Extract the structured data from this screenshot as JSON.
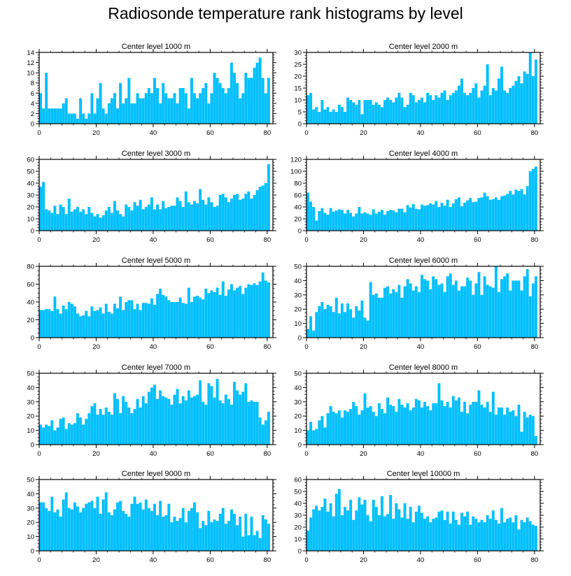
{
  "title": "Radiosonde temperature rank histograms by level",
  "bar_color": "#00bfff",
  "chart_data": [
    {
      "type": "bar",
      "title": "Center level 1000 m",
      "xlim": [
        0,
        82
      ],
      "ylim": [
        0,
        14
      ],
      "yticks": [
        0,
        2,
        4,
        6,
        8,
        10,
        12,
        14
      ],
      "xticks": [
        0,
        20,
        40,
        60,
        80
      ],
      "values": [
        6,
        3,
        10,
        3,
        3,
        3,
        3,
        3,
        4,
        5,
        2,
        2,
        2,
        1,
        5,
        2,
        1,
        2,
        6,
        2,
        5,
        8,
        3,
        2,
        4,
        5,
        6,
        3,
        8,
        4,
        5,
        9,
        4,
        4,
        6,
        5,
        5,
        6,
        7,
        6,
        9,
        7,
        4,
        8,
        6,
        5,
        5,
        6,
        4,
        7,
        7,
        6,
        3,
        9,
        6,
        5,
        6,
        7,
        8,
        4,
        6,
        10,
        9,
        8,
        7,
        6,
        7,
        12,
        10,
        8,
        5,
        6,
        10,
        9,
        9,
        11,
        12,
        13,
        9,
        6,
        9
      ]
    },
    {
      "type": "bar",
      "title": "Center level 2000 m",
      "xlim": [
        0,
        82
      ],
      "ylim": [
        0,
        30
      ],
      "yticks": [
        0,
        5,
        10,
        15,
        20,
        25,
        30
      ],
      "xticks": [
        0,
        20,
        40,
        60,
        80
      ],
      "values": [
        12,
        13,
        6,
        7,
        5,
        10,
        6,
        7,
        5,
        6,
        5,
        8,
        7,
        5,
        11,
        10,
        9,
        8,
        10,
        4,
        10,
        10,
        10,
        8,
        9,
        8,
        7,
        10,
        11,
        10,
        9,
        11,
        13,
        11,
        7,
        8,
        13,
        12,
        9,
        10,
        11,
        9,
        13,
        12,
        10,
        12,
        11,
        13,
        14,
        10,
        12,
        13,
        14,
        16,
        19,
        13,
        12,
        13,
        15,
        17,
        11,
        14,
        16,
        25,
        12,
        15,
        14,
        19,
        24,
        14,
        13,
        15,
        16,
        18,
        20,
        17,
        22,
        21,
        30,
        20,
        27
      ]
    },
    {
      "type": "bar",
      "title": "Center level 3000 m",
      "xlim": [
        0,
        82
      ],
      "ylim": [
        0,
        60
      ],
      "yticks": [
        0,
        10,
        20,
        30,
        40,
        50,
        60
      ],
      "xticks": [
        0,
        20,
        40,
        60,
        80
      ],
      "values": [
        37,
        41,
        18,
        17,
        15,
        21,
        14,
        22,
        20,
        14,
        27,
        16,
        18,
        20,
        16,
        18,
        14,
        20,
        15,
        12,
        14,
        11,
        13,
        17,
        20,
        15,
        25,
        17,
        14,
        12,
        22,
        20,
        17,
        24,
        21,
        26,
        18,
        20,
        22,
        28,
        18,
        22,
        18,
        25,
        19,
        20,
        21,
        21,
        28,
        25,
        20,
        33,
        24,
        22,
        25,
        23,
        35,
        26,
        22,
        28,
        24,
        20,
        21,
        30,
        31,
        28,
        24,
        27,
        30,
        31,
        26,
        27,
        31,
        33,
        27,
        30,
        34,
        37,
        38,
        40,
        56
      ]
    },
    {
      "type": "bar",
      "title": "Center level 4000 m",
      "xlim": [
        0,
        82
      ],
      "ylim": [
        0,
        120
      ],
      "yticks": [
        0,
        20,
        40,
        60,
        80,
        100,
        120
      ],
      "xticks": [
        0,
        20,
        40,
        60,
        80
      ],
      "values": [
        64,
        49,
        40,
        17,
        33,
        38,
        30,
        27,
        38,
        32,
        34,
        36,
        35,
        29,
        35,
        30,
        24,
        29,
        40,
        29,
        31,
        29,
        27,
        36,
        29,
        32,
        35,
        27,
        33,
        35,
        34,
        31,
        37,
        37,
        31,
        43,
        39,
        45,
        37,
        36,
        44,
        42,
        43,
        46,
        44,
        50,
        40,
        47,
        42,
        52,
        40,
        46,
        53,
        56,
        41,
        47,
        51,
        55,
        48,
        49,
        55,
        56,
        64,
        58,
        52,
        53,
        56,
        52,
        58,
        59,
        62,
        67,
        61,
        69,
        67,
        70,
        61,
        75,
        100,
        104,
        108
      ]
    },
    {
      "type": "bar",
      "title": "Center level 5000 m",
      "xlim": [
        0,
        82
      ],
      "ylim": [
        0,
        80
      ],
      "yticks": [
        0,
        20,
        40,
        60,
        80
      ],
      "xticks": [
        0,
        20,
        40,
        60,
        80
      ],
      "values": [
        31,
        31,
        32,
        32,
        30,
        46,
        32,
        27,
        36,
        32,
        40,
        38,
        35,
        27,
        24,
        25,
        30,
        24,
        35,
        30,
        31,
        34,
        27,
        38,
        29,
        27,
        38,
        33,
        46,
        31,
        40,
        42,
        42,
        32,
        38,
        31,
        39,
        39,
        38,
        44,
        37,
        49,
        55,
        48,
        46,
        42,
        40,
        40,
        40,
        45,
        39,
        38,
        56,
        40,
        46,
        47,
        45,
        43,
        55,
        50,
        53,
        51,
        56,
        48,
        63,
        47,
        54,
        60,
        53,
        56,
        58,
        49,
        56,
        60,
        59,
        61,
        59,
        63,
        73,
        64,
        62
      ]
    },
    {
      "type": "bar",
      "title": "Center level 6000 m",
      "xlim": [
        0,
        82
      ],
      "ylim": [
        0,
        50
      ],
      "yticks": [
        0,
        10,
        20,
        30,
        40,
        50
      ],
      "xticks": [
        0,
        20,
        40,
        60,
        80
      ],
      "values": [
        6,
        15,
        5,
        18,
        22,
        25,
        20,
        23,
        22,
        18,
        28,
        17,
        24,
        18,
        24,
        20,
        14,
        22,
        19,
        26,
        14,
        12,
        39,
        30,
        31,
        28,
        28,
        35,
        36,
        31,
        34,
        32,
        37,
        28,
        36,
        41,
        38,
        33,
        36,
        32,
        44,
        41,
        40,
        34,
        43,
        41,
        37,
        38,
        32,
        43,
        45,
        37,
        40,
        33,
        36,
        36,
        42,
        40,
        30,
        38,
        46,
        30,
        43,
        37,
        36,
        35,
        50,
        32,
        41,
        43,
        45,
        33,
        40,
        40,
        40,
        33,
        43,
        48,
        29,
        38,
        43
      ]
    },
    {
      "type": "bar",
      "title": "Center level 7000 m",
      "xlim": [
        0,
        82
      ],
      "ylim": [
        0,
        50
      ],
      "yticks": [
        0,
        10,
        20,
        30,
        40,
        50
      ],
      "xticks": [
        0,
        20,
        40,
        60,
        80
      ],
      "values": [
        14,
        12,
        14,
        13,
        17,
        10,
        12,
        18,
        19,
        11,
        15,
        14,
        15,
        22,
        19,
        14,
        18,
        22,
        27,
        29,
        21,
        25,
        21,
        26,
        23,
        21,
        36,
        32,
        22,
        34,
        30,
        26,
        22,
        25,
        32,
        26,
        34,
        29,
        37,
        40,
        42,
        32,
        38,
        34,
        33,
        32,
        28,
        35,
        39,
        29,
        34,
        31,
        38,
        33,
        34,
        35,
        45,
        30,
        28,
        43,
        41,
        33,
        46,
        31,
        29,
        35,
        32,
        28,
        44,
        38,
        35,
        37,
        43,
        30,
        31,
        30,
        30,
        19,
        14,
        17,
        23
      ]
    },
    {
      "type": "bar",
      "title": "Center level 8000 m",
      "xlim": [
        0,
        82
      ],
      "ylim": [
        0,
        50
      ],
      "yticks": [
        0,
        10,
        20,
        30,
        40,
        50
      ],
      "xticks": [
        0,
        20,
        40,
        60,
        80
      ],
      "values": [
        10,
        16,
        10,
        11,
        17,
        20,
        12,
        22,
        27,
        23,
        22,
        24,
        19,
        24,
        23,
        25,
        30,
        27,
        21,
        24,
        36,
        26,
        27,
        23,
        20,
        29,
        25,
        22,
        33,
        28,
        27,
        23,
        32,
        28,
        26,
        29,
        24,
        26,
        32,
        31,
        26,
        30,
        27,
        24,
        29,
        29,
        43,
        31,
        27,
        30,
        26,
        34,
        31,
        33,
        23,
        30,
        22,
        28,
        30,
        30,
        38,
        28,
        26,
        30,
        23,
        37,
        21,
        26,
        26,
        21,
        26,
        23,
        24,
        20,
        28,
        9,
        23,
        19,
        21,
        20,
        6
      ]
    },
    {
      "type": "bar",
      "title": "Center level 9000 m",
      "xlim": [
        0,
        82
      ],
      "ylim": [
        0,
        50
      ],
      "yticks": [
        0,
        10,
        20,
        30,
        40,
        50
      ],
      "xticks": [
        0,
        20,
        40,
        60,
        80
      ],
      "values": [
        34,
        34,
        30,
        28,
        38,
        27,
        29,
        24,
        36,
        41,
        30,
        29,
        34,
        31,
        27,
        30,
        33,
        34,
        35,
        30,
        38,
        26,
        36,
        41,
        27,
        25,
        29,
        34,
        35,
        28,
        26,
        24,
        33,
        38,
        33,
        34,
        29,
        36,
        30,
        28,
        33,
        25,
        35,
        24,
        25,
        33,
        20,
        24,
        21,
        23,
        30,
        20,
        28,
        30,
        34,
        27,
        16,
        21,
        18,
        28,
        20,
        22,
        21,
        26,
        30,
        19,
        21,
        29,
        26,
        18,
        24,
        10,
        26,
        11,
        24,
        11,
        14,
        9,
        25,
        22,
        19
      ]
    },
    {
      "type": "bar",
      "title": "Center level 10000 m",
      "xlim": [
        0,
        82
      ],
      "ylim": [
        0,
        60
      ],
      "yticks": [
        0,
        10,
        20,
        30,
        40,
        50,
        60
      ],
      "xticks": [
        0,
        20,
        40,
        60,
        80
      ],
      "values": [
        17,
        28,
        35,
        38,
        34,
        37,
        44,
        33,
        40,
        29,
        48,
        52,
        30,
        37,
        34,
        43,
        26,
        34,
        45,
        39,
        43,
        30,
        25,
        43,
        37,
        30,
        46,
        29,
        31,
        47,
        27,
        40,
        35,
        28,
        40,
        27,
        37,
        24,
        33,
        38,
        32,
        27,
        29,
        24,
        27,
        28,
        33,
        34,
        26,
        33,
        23,
        33,
        26,
        22,
        32,
        29,
        33,
        22,
        29,
        27,
        24,
        26,
        24,
        30,
        27,
        34,
        26,
        23,
        36,
        24,
        27,
        28,
        24,
        30,
        18,
        26,
        24,
        28,
        25,
        22,
        21
      ]
    }
  ]
}
